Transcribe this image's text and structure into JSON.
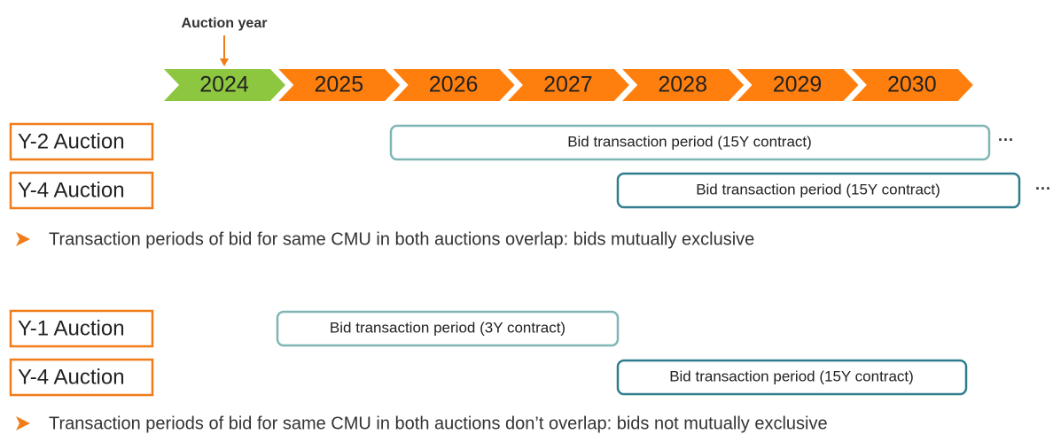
{
  "header": {
    "label": "Auction year"
  },
  "years": [
    "2024",
    "2025",
    "2026",
    "2027",
    "2028",
    "2029",
    "2030"
  ],
  "groups": [
    {
      "rows": [
        {
          "label": "Y-2 Auction",
          "period": "Bid transaction period (15Y contract)",
          "more": "···"
        },
        {
          "label": "Y-4 Auction",
          "period": "Bid transaction period (15Y contract)",
          "more": "···"
        }
      ],
      "note": "Transaction periods of bid for same CMU in both auctions overlap: bids mutually exclusive"
    },
    {
      "rows": [
        {
          "label": "Y-1 Auction",
          "period": "Bid transaction period (3Y contract)"
        },
        {
          "label": "Y-4 Auction",
          "period": "Bid transaction period (15Y contract)"
        }
      ],
      "note": "Transaction periods of bid for same CMU in both auctions don’t overlap: bids not mutually exclusive"
    }
  ]
}
